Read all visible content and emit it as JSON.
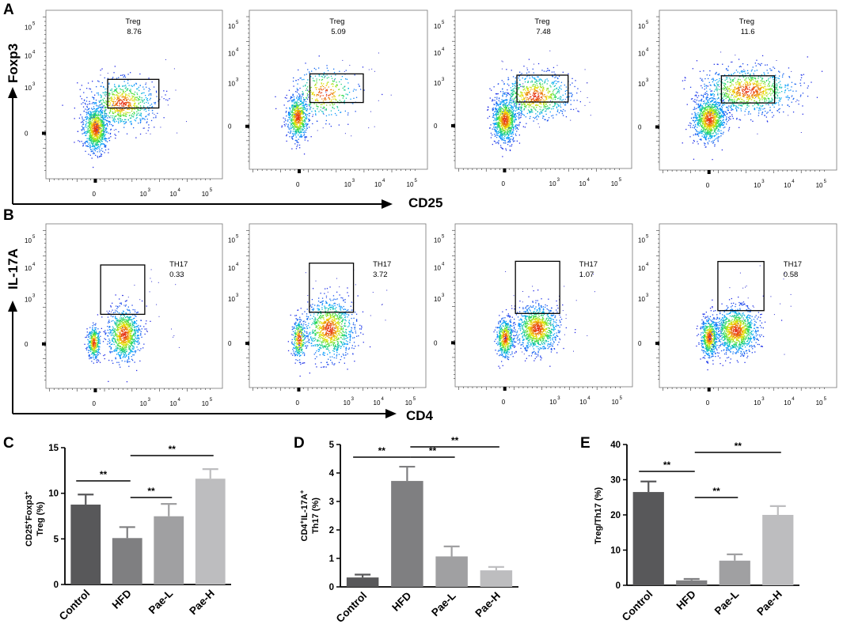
{
  "panel_letters": {
    "a": "A",
    "b": "B",
    "c": "C",
    "d": "D",
    "e": "E"
  },
  "flow_a": {
    "y_label": "Foxp3",
    "x_label": "CD25",
    "x_ticks": [
      "0",
      "10",
      "10",
      "10"
    ],
    "y_ticks": [
      "10",
      "10",
      "10",
      "0"
    ],
    "gate_label": "Treg",
    "gates": [
      {
        "value": "8.76"
      },
      {
        "value": "5.09"
      },
      {
        "value": "7.48"
      },
      {
        "value": "11.6"
      }
    ]
  },
  "flow_b": {
    "y_label": "IL-17A",
    "x_label": "CD4",
    "x_ticks": [
      "0",
      "10",
      "10",
      "10"
    ],
    "y_ticks": [
      "10",
      "10",
      "10",
      "0"
    ],
    "gate_label": "TH17",
    "gates": [
      {
        "value": "0.33"
      },
      {
        "value": "3.72"
      },
      {
        "value": "1.07"
      },
      {
        "value": "0.58"
      }
    ]
  },
  "tick_exponents": [
    "5",
    "4",
    "3"
  ],
  "chart_data": [
    {
      "id": "C",
      "type": "bar",
      "categories": [
        "Control",
        "HFD",
        "Pae-L",
        "Pae-H"
      ],
      "values": [
        8.76,
        5.09,
        7.48,
        11.6
      ],
      "errors": [
        1.1,
        1.2,
        1.35,
        1.05
      ],
      "ylim": [
        0,
        15
      ],
      "yticks": [
        "0",
        "5",
        "10",
        "15"
      ],
      "ylabel_line1": "CD25",
      "ylabel_line1_b": "Foxp3",
      "ylabel_line2": "Treg (%)",
      "sup": "+",
      "colors": [
        "#58585a",
        "#7f7f81",
        "#a0a0a2",
        "#bdbdbf"
      ],
      "significance": [
        {
          "from": 0,
          "to": 1,
          "label": "**"
        },
        {
          "from": 1,
          "to": 2,
          "label": "**"
        },
        {
          "from": 1,
          "to": 3,
          "label": "**"
        }
      ]
    },
    {
      "id": "D",
      "type": "bar",
      "categories": [
        "Control",
        "HFD",
        "Pae-L",
        "Pae-H"
      ],
      "values": [
        0.33,
        3.72,
        1.07,
        0.58
      ],
      "errors": [
        0.1,
        0.5,
        0.35,
        0.12
      ],
      "ylim": [
        0,
        5
      ],
      "yticks": [
        "0",
        "1",
        "2",
        "3",
        "4",
        "5"
      ],
      "ylabel_line1": "CD4",
      "ylabel_line1_b": "IL-17A",
      "ylabel_line2": "Th17 (%)",
      "sup": "+",
      "colors": [
        "#58585a",
        "#7f7f81",
        "#a0a0a2",
        "#bdbdbf"
      ],
      "significance": [
        {
          "from": 0,
          "to": 1,
          "label": "**"
        },
        {
          "from": 1,
          "to": 2,
          "label": "**"
        },
        {
          "from": 1,
          "to": 3,
          "label": "**"
        }
      ]
    },
    {
      "id": "E",
      "type": "bar",
      "categories": [
        "Control",
        "HFD",
        "Pae-L",
        "Pae-H"
      ],
      "values": [
        26.5,
        1.4,
        7.0,
        20.0
      ],
      "errors": [
        3.0,
        0.4,
        1.8,
        2.5
      ],
      "ylim": [
        0,
        40
      ],
      "yticks": [
        "0",
        "10",
        "20",
        "30",
        "40"
      ],
      "ylabel_line1": "Treg/Th17 (%)",
      "colors": [
        "#58585a",
        "#7f7f81",
        "#a0a0a2",
        "#bdbdbf"
      ],
      "significance": [
        {
          "from": 0,
          "to": 1,
          "label": "**"
        },
        {
          "from": 1,
          "to": 2,
          "label": "**"
        },
        {
          "from": 1,
          "to": 3,
          "label": "**"
        }
      ]
    }
  ]
}
